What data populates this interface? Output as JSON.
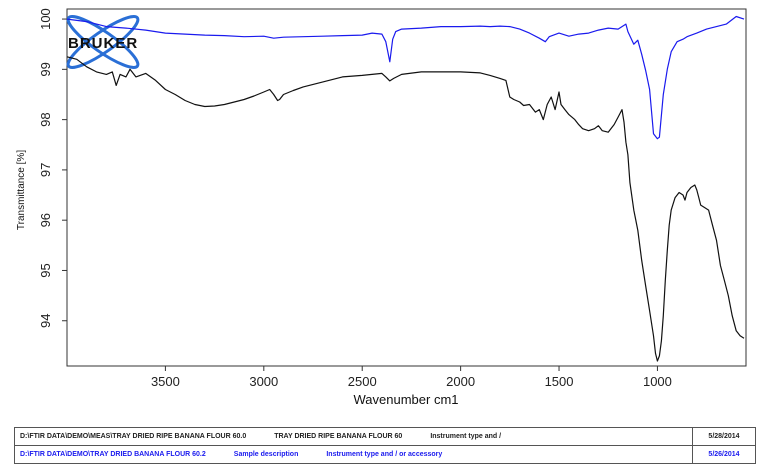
{
  "chart_data": {
    "type": "line",
    "xlabel": "Wavenumber cm1",
    "ylabel": "Transmittance [%]",
    "xlim": [
      4000,
      550
    ],
    "ylim": [
      93.1,
      100.2
    ],
    "x_ticks": [
      3500,
      3000,
      2500,
      2000,
      1500,
      1000
    ],
    "y_ticks": [
      94,
      95,
      96,
      97,
      98,
      99,
      100
    ],
    "grid": false,
    "series": [
      {
        "color": "#1a1aee",
        "points": [
          [
            4000,
            100
          ],
          [
            3900,
            99.95
          ],
          [
            3800,
            99.85
          ],
          [
            3700,
            99.82
          ],
          [
            3600,
            99.78
          ],
          [
            3500,
            99.72
          ],
          [
            3400,
            99.7
          ],
          [
            3300,
            99.68
          ],
          [
            3200,
            99.67
          ],
          [
            3100,
            99.65
          ],
          [
            3000,
            99.66
          ],
          [
            2950,
            99.62
          ],
          [
            2900,
            99.64
          ],
          [
            2800,
            99.65
          ],
          [
            2700,
            99.66
          ],
          [
            2600,
            99.67
          ],
          [
            2500,
            99.68
          ],
          [
            2450,
            99.72
          ],
          [
            2400,
            99.7
          ],
          [
            2380,
            99.55
          ],
          [
            2360,
            99.15
          ],
          [
            2345,
            99.6
          ],
          [
            2330,
            99.75
          ],
          [
            2300,
            99.8
          ],
          [
            2200,
            99.82
          ],
          [
            2100,
            99.85
          ],
          [
            2000,
            99.85
          ],
          [
            1900,
            99.86
          ],
          [
            1850,
            99.85
          ],
          [
            1800,
            99.86
          ],
          [
            1750,
            99.85
          ],
          [
            1700,
            99.8
          ],
          [
            1650,
            99.72
          ],
          [
            1600,
            99.62
          ],
          [
            1570,
            99.55
          ],
          [
            1550,
            99.65
          ],
          [
            1500,
            99.72
          ],
          [
            1450,
            99.66
          ],
          [
            1400,
            99.7
          ],
          [
            1350,
            99.72
          ],
          [
            1300,
            99.78
          ],
          [
            1250,
            99.82
          ],
          [
            1200,
            99.8
          ],
          [
            1160,
            99.9
          ],
          [
            1150,
            99.75
          ],
          [
            1120,
            99.5
          ],
          [
            1100,
            99.58
          ],
          [
            1080,
            99.3
          ],
          [
            1060,
            98.98
          ],
          [
            1040,
            98.6
          ],
          [
            1020,
            97.72
          ],
          [
            1000,
            97.62
          ],
          [
            990,
            97.65
          ],
          [
            970,
            98.5
          ],
          [
            950,
            99.0
          ],
          [
            930,
            99.35
          ],
          [
            900,
            99.55
          ],
          [
            870,
            99.6
          ],
          [
            850,
            99.65
          ],
          [
            800,
            99.72
          ],
          [
            750,
            99.8
          ],
          [
            700,
            99.85
          ],
          [
            650,
            99.9
          ],
          [
            600,
            100.05
          ],
          [
            560,
            100.0
          ]
        ]
      },
      {
        "color": "#111111",
        "points": [
          [
            4000,
            99.25
          ],
          [
            3950,
            99.2
          ],
          [
            3900,
            99.05
          ],
          [
            3850,
            98.95
          ],
          [
            3800,
            98.9
          ],
          [
            3770,
            98.95
          ],
          [
            3750,
            98.68
          ],
          [
            3730,
            98.9
          ],
          [
            3700,
            98.85
          ],
          [
            3680,
            99.0
          ],
          [
            3650,
            98.85
          ],
          [
            3600,
            98.92
          ],
          [
            3550,
            98.78
          ],
          [
            3500,
            98.6
          ],
          [
            3450,
            98.5
          ],
          [
            3400,
            98.38
          ],
          [
            3350,
            98.3
          ],
          [
            3300,
            98.26
          ],
          [
            3250,
            98.27
          ],
          [
            3200,
            98.3
          ],
          [
            3150,
            98.35
          ],
          [
            3100,
            98.4
          ],
          [
            3050,
            98.47
          ],
          [
            3000,
            98.55
          ],
          [
            2970,
            98.6
          ],
          [
            2950,
            98.5
          ],
          [
            2930,
            98.38
          ],
          [
            2920,
            98.4
          ],
          [
            2900,
            98.5
          ],
          [
            2850,
            98.58
          ],
          [
            2800,
            98.65
          ],
          [
            2700,
            98.75
          ],
          [
            2600,
            98.85
          ],
          [
            2500,
            98.88
          ],
          [
            2400,
            98.92
          ],
          [
            2380,
            98.85
          ],
          [
            2360,
            98.77
          ],
          [
            2340,
            98.82
          ],
          [
            2300,
            98.9
          ],
          [
            2200,
            98.95
          ],
          [
            2100,
            98.95
          ],
          [
            2000,
            98.95
          ],
          [
            1900,
            98.93
          ],
          [
            1850,
            98.88
          ],
          [
            1800,
            98.82
          ],
          [
            1770,
            98.78
          ],
          [
            1750,
            98.45
          ],
          [
            1730,
            98.4
          ],
          [
            1700,
            98.35
          ],
          [
            1680,
            98.28
          ],
          [
            1650,
            98.3
          ],
          [
            1620,
            98.15
          ],
          [
            1600,
            98.2
          ],
          [
            1580,
            98.0
          ],
          [
            1560,
            98.3
          ],
          [
            1540,
            98.45
          ],
          [
            1520,
            98.2
          ],
          [
            1500,
            98.55
          ],
          [
            1490,
            98.3
          ],
          [
            1470,
            98.2
          ],
          [
            1450,
            98.1
          ],
          [
            1420,
            98.0
          ],
          [
            1400,
            97.9
          ],
          [
            1380,
            97.82
          ],
          [
            1350,
            97.78
          ],
          [
            1320,
            97.82
          ],
          [
            1300,
            97.88
          ],
          [
            1280,
            97.78
          ],
          [
            1250,
            97.75
          ],
          [
            1220,
            97.9
          ],
          [
            1200,
            98.05
          ],
          [
            1180,
            98.2
          ],
          [
            1170,
            97.95
          ],
          [
            1160,
            97.55
          ],
          [
            1150,
            97.3
          ],
          [
            1140,
            96.75
          ],
          [
            1120,
            96.2
          ],
          [
            1100,
            95.8
          ],
          [
            1080,
            95.2
          ],
          [
            1060,
            94.7
          ],
          [
            1040,
            94.2
          ],
          [
            1020,
            93.7
          ],
          [
            1010,
            93.35
          ],
          [
            1000,
            93.2
          ],
          [
            990,
            93.3
          ],
          [
            980,
            93.6
          ],
          [
            970,
            94.1
          ],
          [
            960,
            94.8
          ],
          [
            950,
            95.4
          ],
          [
            940,
            95.9
          ],
          [
            930,
            96.2
          ],
          [
            910,
            96.45
          ],
          [
            890,
            96.55
          ],
          [
            870,
            96.5
          ],
          [
            860,
            96.4
          ],
          [
            850,
            96.55
          ],
          [
            830,
            96.65
          ],
          [
            810,
            96.7
          ],
          [
            800,
            96.6
          ],
          [
            790,
            96.45
          ],
          [
            780,
            96.3
          ],
          [
            760,
            96.25
          ],
          [
            740,
            96.2
          ],
          [
            720,
            95.9
          ],
          [
            700,
            95.6
          ],
          [
            680,
            95.1
          ],
          [
            660,
            94.8
          ],
          [
            640,
            94.5
          ],
          [
            620,
            94.1
          ],
          [
            600,
            93.8
          ],
          [
            580,
            93.7
          ],
          [
            560,
            93.65
          ]
        ]
      }
    ]
  },
  "logo": {
    "text": "BRUKER"
  },
  "info_table": {
    "row1": {
      "path": "D:\\FTIR DATA\\DEMO\\MEAS\\TRAY DRIED RIPE BANANA FLOUR 60.0",
      "sample": "TRAY DRIED RIPE BANANA FLOUR 60",
      "instrument": "Instrument type and /",
      "date": "5/28/2014"
    },
    "row2": {
      "path": "D:\\FTIR DATA\\DEMO\\TRAY DRIED BANANA FLOUR 60.2",
      "sample": "Sample description",
      "instrument": "Instrument type and / or accessory",
      "date": "5/26/2014"
    }
  },
  "colors": {
    "series_blue": "#1a1aee",
    "series_black": "#111111",
    "frame": "#333333"
  }
}
